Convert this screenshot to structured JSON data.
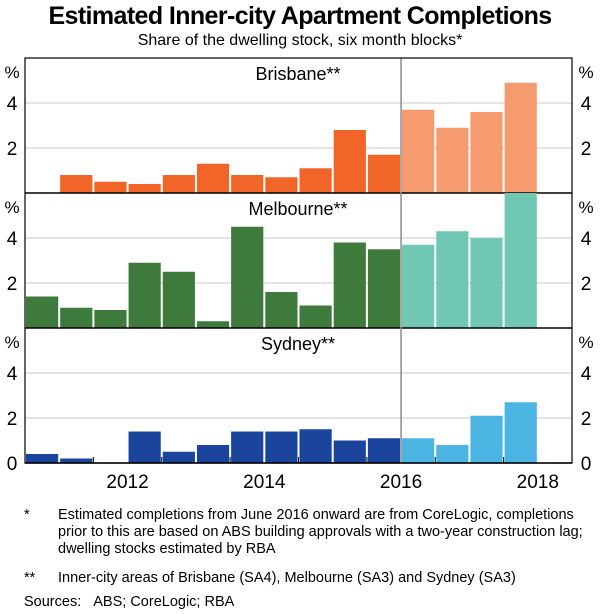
{
  "chart_data": {
    "type": "bar",
    "title": "Estimated Inner-city Apartment Completions",
    "subtitle": "Share of the dwelling stock, six month blocks*",
    "unit": "%",
    "x_tick_labels": [
      "2012",
      "2014",
      "2016",
      "2018"
    ],
    "xlim": [
      2010.5,
      2018.5
    ],
    "ylim": [
      0,
      6
    ],
    "y_ticks": [
      0,
      2,
      4
    ],
    "grid": true,
    "period_start": [
      2010.5,
      2011.0,
      2011.5,
      2012.0,
      2012.5,
      2013.0,
      2013.5,
      2014.0,
      2014.5,
      2015.0,
      2015.5,
      2016.0,
      2016.5,
      2017.0,
      2017.5
    ],
    "source_break": 2016.0,
    "panels": [
      {
        "name": "Brisbane**",
        "color_pre": "#F26529",
        "color_post": "#F59B6F",
        "values": [
          null,
          0.8,
          0.5,
          0.4,
          0.8,
          1.3,
          0.8,
          0.7,
          1.1,
          2.8,
          1.7,
          3.7,
          2.9,
          3.6,
          4.9
        ]
      },
      {
        "name": "Melbourne**",
        "color_pre": "#3E7A3C",
        "color_post": "#6FC7B4",
        "values": [
          1.4,
          0.9,
          0.8,
          2.9,
          2.5,
          0.3,
          4.5,
          1.6,
          1.0,
          3.8,
          3.5,
          3.7,
          4.3,
          4.0,
          6.0
        ]
      },
      {
        "name": "Sydney**",
        "color_pre": "#1B449C",
        "color_post": "#4BB4E3",
        "values": [
          0.4,
          0.2,
          0.0,
          1.4,
          0.5,
          0.8,
          1.4,
          1.4,
          1.5,
          1.0,
          1.1,
          1.1,
          0.8,
          2.1,
          2.7
        ]
      }
    ]
  },
  "notes": [
    {
      "mark": "*",
      "text": "Estimated completions from June 2016 onward are from CoreLogic, completions prior to this are based on ABS building approvals with a two-year construction lag; dwelling stocks estimated by RBA"
    },
    {
      "mark": "**",
      "text": "Inner-city areas of Brisbane (SA4), Melbourne (SA3) and Sydney (SA3)"
    }
  ],
  "sources": {
    "label": "Sources:",
    "text": "ABS; CoreLogic; RBA"
  }
}
